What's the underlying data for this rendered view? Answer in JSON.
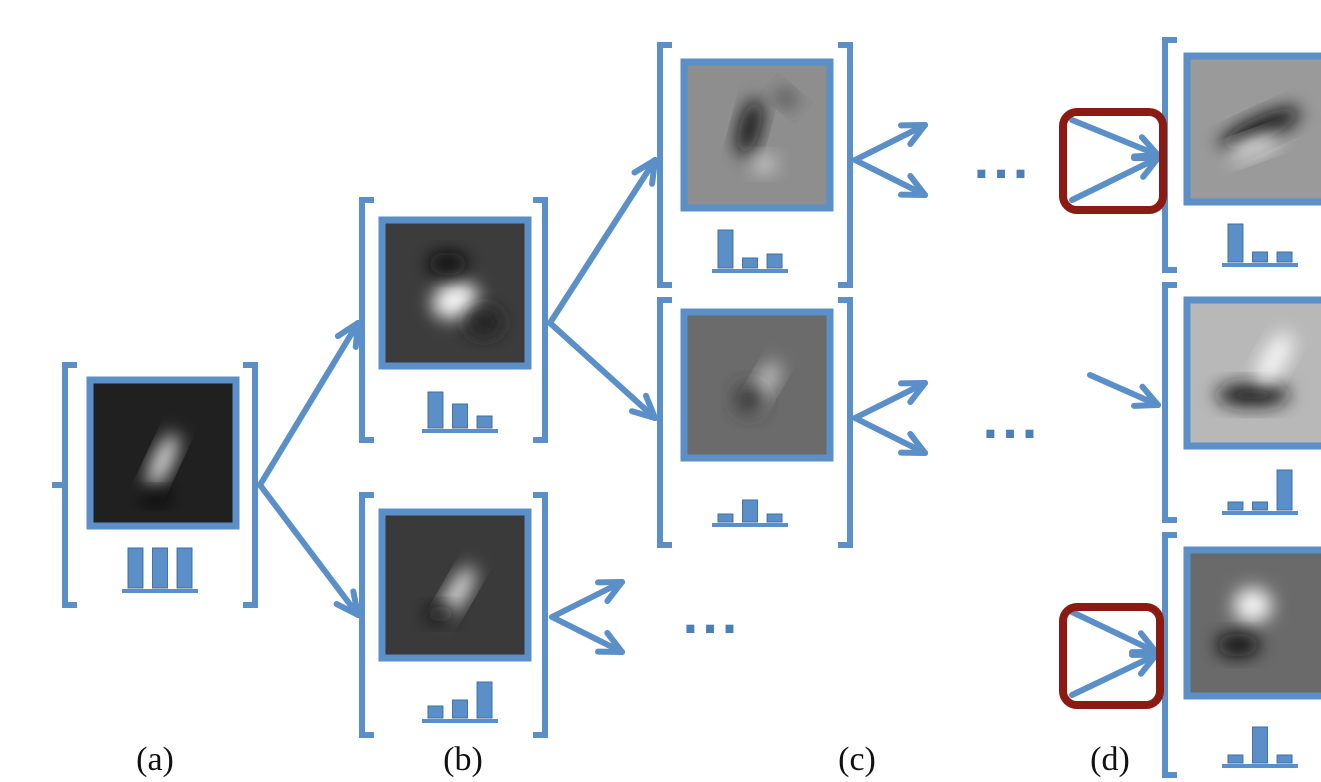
{
  "labels": [
    "(a)",
    "(b)",
    "(c)",
    "(d)"
  ],
  "ellipses": [
    "...",
    "...",
    "..."
  ]
}
